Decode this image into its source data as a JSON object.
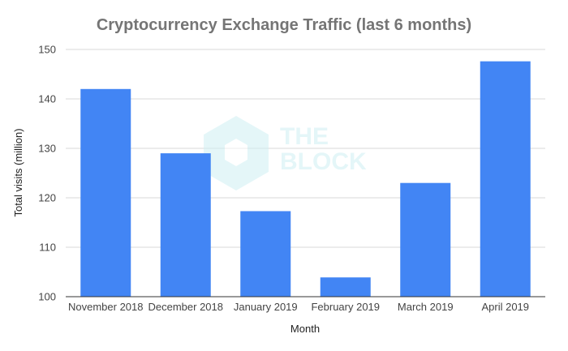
{
  "chart_data": {
    "type": "bar",
    "title": "Cryptocurrency Exchange Traffic (last 6 months)",
    "xlabel": "Month",
    "ylabel": "Total visits (million)",
    "categories": [
      "November 2018",
      "December 2018",
      "January 2019",
      "February 2019",
      "March 2019",
      "April 2019"
    ],
    "values": [
      142,
      129,
      117.3,
      103.9,
      123,
      147.6
    ],
    "ylim": [
      100,
      150
    ],
    "yticks": [
      "100",
      "110",
      "120",
      "130",
      "140",
      "150"
    ],
    "grid": true,
    "color": "#4285f4"
  },
  "watermark": {
    "line1": "THE",
    "line2": "BLOCK"
  }
}
